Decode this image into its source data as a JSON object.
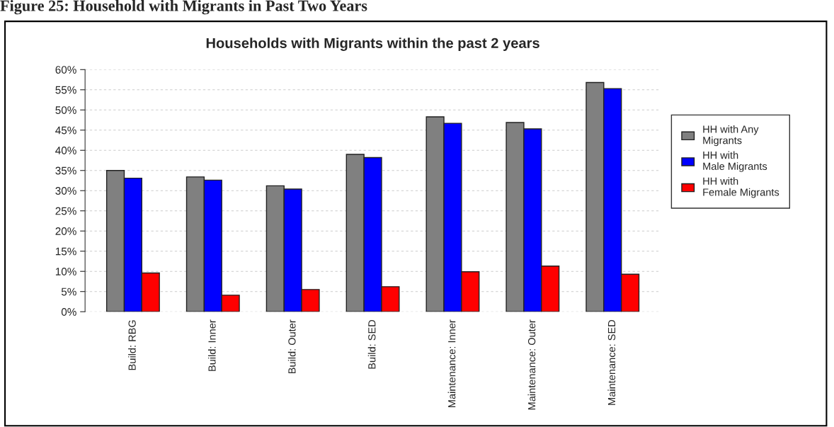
{
  "chart_data": {
    "type": "bar",
    "title": "Households with Migrants within the past 2 years",
    "annotations": [
      "Figure 25: Household with Migrants in Past Two Years"
    ],
    "categories": [
      "Build: RBG",
      "Build: Inner",
      "Build: Outer",
      "Build: SED",
      "Maintenance: Inner",
      "Maintenance: Outer",
      "Maintenance: SED"
    ],
    "series": [
      {
        "name": "HH with Any\nMigrants",
        "color": "#808080",
        "values": [
          35.0,
          33.4,
          31.2,
          39.0,
          48.3,
          46.9,
          56.8
        ]
      },
      {
        "name": "HH with\nMale Migrants",
        "color": "#0000ff",
        "values": [
          33.1,
          32.6,
          30.4,
          38.2,
          46.7,
          45.3,
          55.3
        ]
      },
      {
        "name": "HH with\nFemale Migrants",
        "color": "#ff0000",
        "values": [
          9.6,
          4.1,
          5.5,
          6.2,
          9.9,
          11.3,
          9.3
        ]
      }
    ],
    "ylim": [
      0,
      60
    ],
    "yticks": [
      {
        "value": 0,
        "label": "0%"
      },
      {
        "value": 5,
        "label": "5%"
      },
      {
        "value": 10,
        "label": "10%"
      },
      {
        "value": 15,
        "label": "15%"
      },
      {
        "value": 20,
        "label": "20%"
      },
      {
        "value": 25,
        "label": "25%"
      },
      {
        "value": 30,
        "label": "30%"
      },
      {
        "value": 35,
        "label": "35%"
      },
      {
        "value": 40,
        "label": "40%"
      },
      {
        "value": 45,
        "label": "45%"
      },
      {
        "value": 50,
        "label": "50%"
      },
      {
        "value": 55,
        "label": "55%"
      },
      {
        "value": 60,
        "label": "60%"
      }
    ],
    "grid": "y",
    "legend": "right"
  }
}
